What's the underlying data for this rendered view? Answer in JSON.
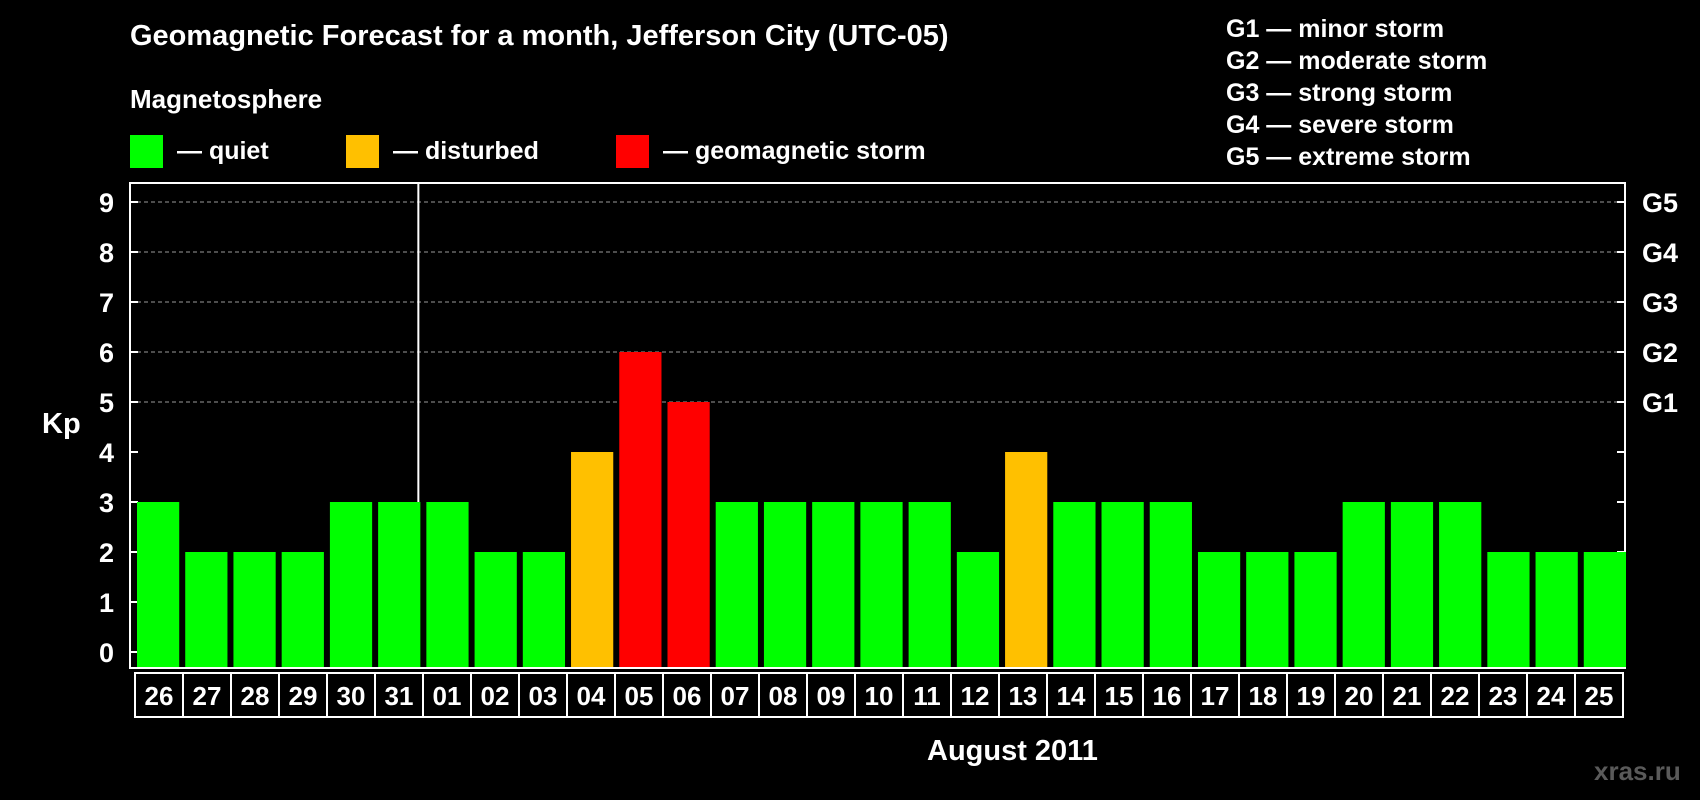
{
  "header": {
    "title": "Geomagnetic Forecast for a month, Jefferson City (UTC-05)",
    "magnetosphere_label": "Magnetosphere",
    "legend": [
      {
        "label": "— quiet",
        "color": "#00ff00"
      },
      {
        "label": "— disturbed",
        "color": "#ffc000"
      },
      {
        "label": "— geomagnetic storm",
        "color": "#ff0000"
      }
    ],
    "storm_scale": [
      "G1 — minor storm",
      "G2 — moderate storm",
      "G3 — strong storm",
      "G4 — severe storm",
      "G5 — extreme storm"
    ]
  },
  "watermark": "xras.ru",
  "chart_data": {
    "type": "bar",
    "title": "Geomagnetic Forecast for a month, Jefferson City (UTC-05)",
    "xlabel": "August 2011",
    "ylabel": "Kp",
    "ylim": [
      0,
      9
    ],
    "yticks": [
      "0",
      "1",
      "2",
      "3",
      "4",
      "5",
      "6",
      "7",
      "8",
      "9"
    ],
    "right_axis_labels": [
      {
        "kp": 5,
        "label": "G1"
      },
      {
        "kp": 6,
        "label": "G2"
      },
      {
        "kp": 7,
        "label": "G3"
      },
      {
        "kp": 8,
        "label": "G4"
      },
      {
        "kp": 9,
        "label": "G5"
      }
    ],
    "month_divider_after_index": 5,
    "categories": [
      "26",
      "27",
      "28",
      "29",
      "30",
      "31",
      "01",
      "02",
      "03",
      "04",
      "05",
      "06",
      "07",
      "08",
      "09",
      "10",
      "11",
      "12",
      "13",
      "14",
      "15",
      "16",
      "17",
      "18",
      "19",
      "20",
      "21",
      "22",
      "23",
      "24",
      "25"
    ],
    "values": [
      3,
      2,
      2,
      2,
      3,
      3,
      3,
      2,
      2,
      4,
      6,
      5,
      3,
      3,
      3,
      3,
      3,
      2,
      4,
      3,
      3,
      3,
      2,
      2,
      2,
      3,
      3,
      3,
      2,
      2,
      2
    ],
    "colors": {
      "quiet": "#00ff00",
      "disturbed": "#ffc000",
      "storm": "#ff0000"
    },
    "thresholds": {
      "disturbed": 4,
      "storm": 5
    }
  }
}
